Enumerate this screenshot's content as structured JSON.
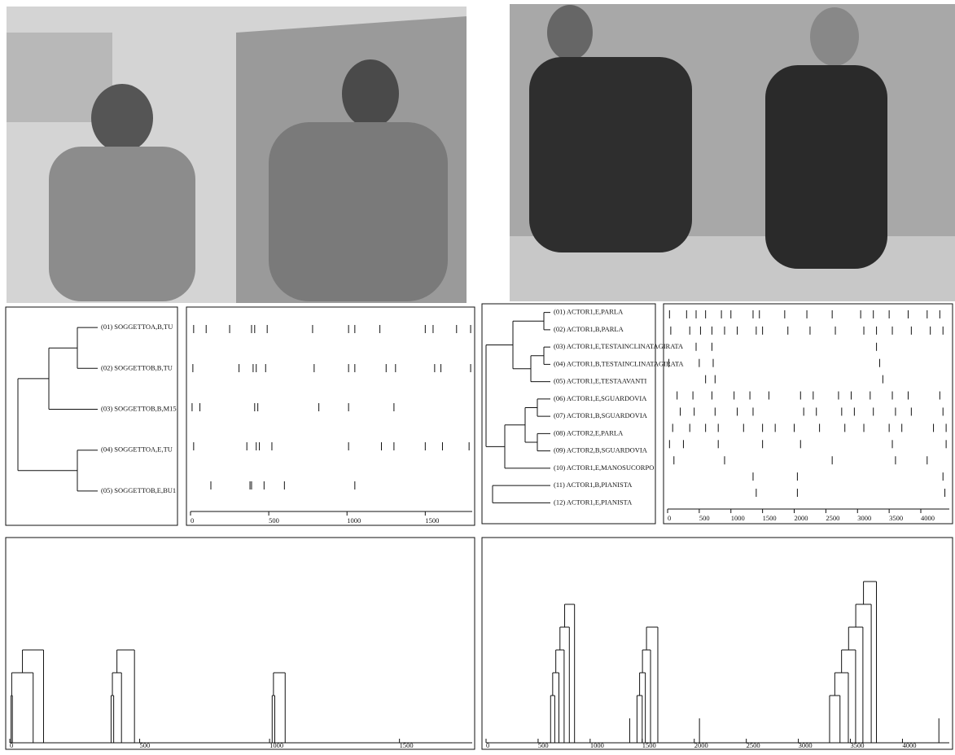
{
  "left": {
    "dendrogram_labels": [
      "(01) SOGGETTOA,B,TU",
      "(02) SOGGETTOB,B,TU",
      "(03) SOGGETTOB,B,M15",
      "(04) SOGGETTOA,E,TU",
      "(05) SOGGETTOB,E,BU1"
    ],
    "events_xlim": [
      0,
      1800
    ],
    "events_xticks": [
      0,
      500,
      1000,
      1500
    ],
    "events": [
      [
        20,
        100,
        250,
        390,
        410,
        490,
        780,
        1010,
        1050,
        1210,
        1500,
        1550,
        1700,
        1790
      ],
      [
        15,
        310,
        400,
        420,
        480,
        790,
        1010,
        1050,
        1250,
        1310,
        1560,
        1600,
        1790
      ],
      [
        10,
        60,
        410,
        430,
        820,
        1010,
        1300
      ],
      [
        20,
        360,
        420,
        440,
        520,
        1010,
        1220,
        1300,
        1500,
        1610,
        1780
      ],
      [
        130,
        380,
        390,
        470,
        600,
        1050
      ]
    ],
    "bottom_xlim": [
      0,
      1780
    ],
    "bottom_xticks": [
      0,
      500,
      1000,
      1500
    ],
    "bottom_groups": [
      [
        5,
        10,
        90,
        130
      ],
      [
        390,
        400,
        430,
        480
      ],
      [
        1010,
        1020,
        1060
      ]
    ]
  },
  "right": {
    "dendrogram_labels": [
      "(01) ACTOR1,E,PARLA",
      "(02) ACTOR1,B,PARLA",
      "(03) ACTOR1,E,TESTAINCLINATAGIRATA",
      "(04) ACTOR1,B,TESTAINCLINATAGIRATA",
      "(05) ACTOR1,E,TESTAAVANTI",
      "(06) ACTOR1,E,SGUARDOVIA",
      "(07) ACTOR1,B,SGUARDOVIA",
      "(08) ACTOR2,E,PARLA",
      "(09) ACTOR2,B,SGUARDOVIA",
      "(10) ACTOR1,E,MANOSUCORPO",
      "(11) ACTOR1,B,PIANISTA",
      "(12) ACTOR1,E,PIANISTA"
    ],
    "events_xlim": [
      0,
      4450
    ],
    "events_xticks": [
      0,
      500,
      1000,
      1500,
      2000,
      2500,
      3000,
      3500,
      4000
    ],
    "events": [
      [
        30,
        300,
        450,
        600,
        850,
        1000,
        1350,
        1450,
        1850,
        2200,
        2600,
        3050,
        3250,
        3500,
        3800,
        4100,
        4300
      ],
      [
        50,
        350,
        520,
        700,
        900,
        1100,
        1400,
        1500,
        1900,
        2250,
        2650,
        3100,
        3300,
        3550,
        3850,
        4150,
        4350
      ],
      [
        450,
        700,
        3300
      ],
      [
        20,
        500,
        720,
        3350
      ],
      [
        600,
        750,
        3400
      ],
      [
        150,
        400,
        700,
        1050,
        1300,
        1600,
        2100,
        2300,
        2700,
        2900,
        3200,
        3550,
        3800,
        4300
      ],
      [
        200,
        420,
        750,
        1100,
        1350,
        2150,
        2350,
        2750,
        2950,
        3250,
        3600,
        3850,
        4350
      ],
      [
        80,
        350,
        600,
        800,
        1200,
        1500,
        1700,
        2000,
        2400,
        2800,
        3100,
        3500,
        3700,
        4200,
        4400
      ],
      [
        30,
        250,
        800,
        1500,
        2100,
        3550,
        4400
      ],
      [
        100,
        900,
        2600,
        3600,
        4100
      ],
      [
        1350,
        2050,
        4350
      ],
      [
        1400,
        2050,
        4380
      ]
    ],
    "bottom_xlim": [
      0,
      4450
    ],
    "bottom_xticks": [
      0,
      500,
      1000,
      1500,
      2000,
      2500,
      3000,
      3500,
      4000
    ],
    "bottom_groups": [
      [
        620,
        660,
        700,
        750,
        800,
        850
      ],
      [
        1380
      ],
      [
        1450,
        1500,
        1530,
        1580,
        1650
      ],
      [
        2050
      ],
      [
        3300,
        3400,
        3480,
        3550,
        3620,
        3700,
        3750
      ],
      [
        4350
      ]
    ]
  }
}
